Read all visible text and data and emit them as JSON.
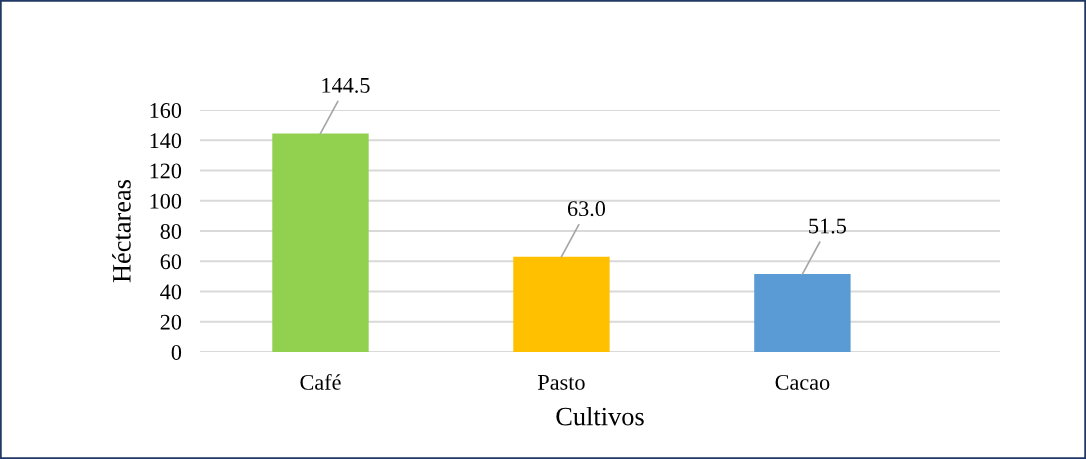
{
  "chart_data": {
    "type": "bar",
    "xlabel": "Cultivos",
    "ylabel": "Héctareas",
    "categories": [
      "Café",
      "Pasto",
      "Cacao"
    ],
    "values": [
      144.5,
      63.0,
      51.5
    ],
    "colors": [
      "#92d050",
      "#ffc000",
      "#5b9bd5"
    ],
    "value_labels": [
      "144.5",
      "63.0",
      "51.5"
    ],
    "ylim": [
      0,
      160
    ],
    "yticks": [
      0,
      20,
      40,
      60,
      80,
      100,
      120,
      140,
      160
    ],
    "grid": "y"
  }
}
